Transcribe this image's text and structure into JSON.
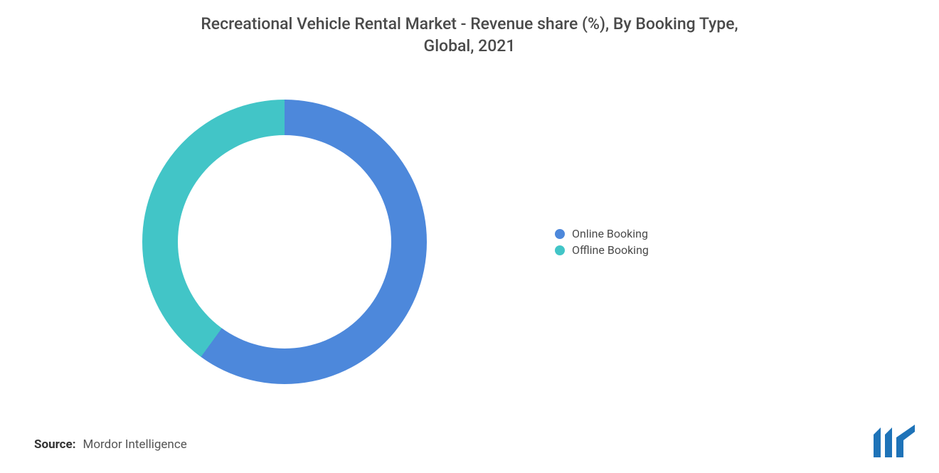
{
  "title": {
    "line1": "Recreational Vehicle Rental Market - Revenue share (%), By Booking Type,",
    "line2": "Global, 2021",
    "color": "#4a4a4a",
    "fontsize": 23
  },
  "chart": {
    "type": "donut",
    "background_color": "#ffffff",
    "inner_radius_ratio": 0.375,
    "rotation_deg": 0,
    "slices": [
      {
        "label": "Online Booking",
        "value": 60,
        "color": "#4d88db"
      },
      {
        "label": "Offline Booking",
        "value": 40,
        "color": "#42c5c7"
      }
    ]
  },
  "legend": {
    "fontsize": 16,
    "text_color": "#4a4a4a",
    "items": [
      {
        "swatch": "#4d88db",
        "label": "Online Booking"
      },
      {
        "swatch": "#42c5c7",
        "label": "Offline Booking"
      }
    ]
  },
  "source": {
    "label": "Source:",
    "value": "Mordor Intelligence",
    "label_color": "#333333",
    "value_color": "#555555",
    "fontsize": 17
  },
  "logo": {
    "bar_color": "#1e73b8",
    "accent_color": "#1e73b8"
  }
}
